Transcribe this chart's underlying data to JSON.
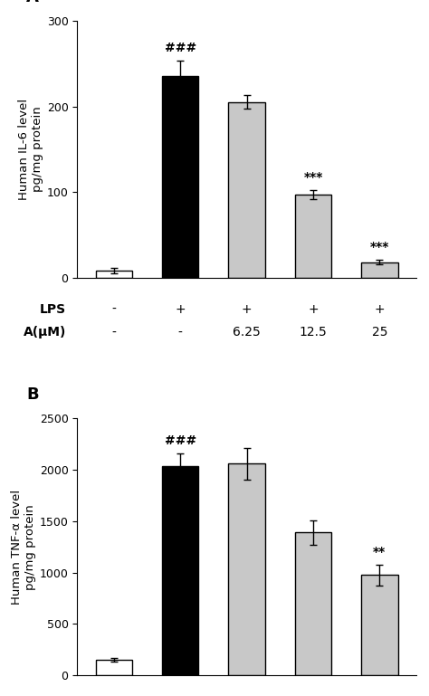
{
  "panel_A": {
    "label": "A",
    "ylabel": "Human IL-6 level\npg/mg protein",
    "ylim": [
      0,
      300
    ],
    "yticks": [
      0,
      100,
      200,
      300
    ],
    "values": [
      8,
      235,
      205,
      97,
      18
    ],
    "errors": [
      3,
      18,
      8,
      5,
      3
    ],
    "bar_colors": [
      "#ffffff",
      "#000000",
      "#c8c8c8",
      "#c8c8c8",
      "#c8c8c8"
    ],
    "bar_edgecolors": [
      "#000000",
      "#000000",
      "#000000",
      "#000000",
      "#000000"
    ],
    "annotations": [
      "",
      "###",
      "",
      "***",
      "***"
    ],
    "lps_labels": [
      "-",
      "+",
      "+",
      "+",
      "+"
    ],
    "a_labels": [
      "-",
      "-",
      "6.25",
      "12.5",
      "25"
    ]
  },
  "panel_B": {
    "label": "B",
    "ylabel": "Human TNF-α level\npg/mg protein",
    "ylim": [
      0,
      2500
    ],
    "yticks": [
      0,
      500,
      1000,
      1500,
      2000,
      2500
    ],
    "values": [
      150,
      2040,
      2060,
      1390,
      975
    ],
    "errors": [
      18,
      120,
      155,
      120,
      100
    ],
    "bar_colors": [
      "#ffffff",
      "#000000",
      "#c8c8c8",
      "#c8c8c8",
      "#c8c8c8"
    ],
    "bar_edgecolors": [
      "#000000",
      "#000000",
      "#000000",
      "#000000",
      "#000000"
    ],
    "annotations": [
      "",
      "###",
      "",
      "",
      "**"
    ],
    "lps_labels": [
      "-",
      "+",
      "+",
      "+",
      "+"
    ],
    "a_labels": [
      "-",
      "-",
      "6.25",
      "12.5",
      "25"
    ]
  },
  "bar_width": 0.55,
  "x_positions": [
    0,
    1,
    2,
    3,
    4
  ],
  "lps_label": "LPS",
  "a_label": "A(μM)",
  "background_color": "#ffffff",
  "label_fontsize": 10,
  "tick_fontsize": 9,
  "annot_fontsize": 10,
  "axis_label_fontsize": 9.5,
  "panel_label_fontsize": 13
}
